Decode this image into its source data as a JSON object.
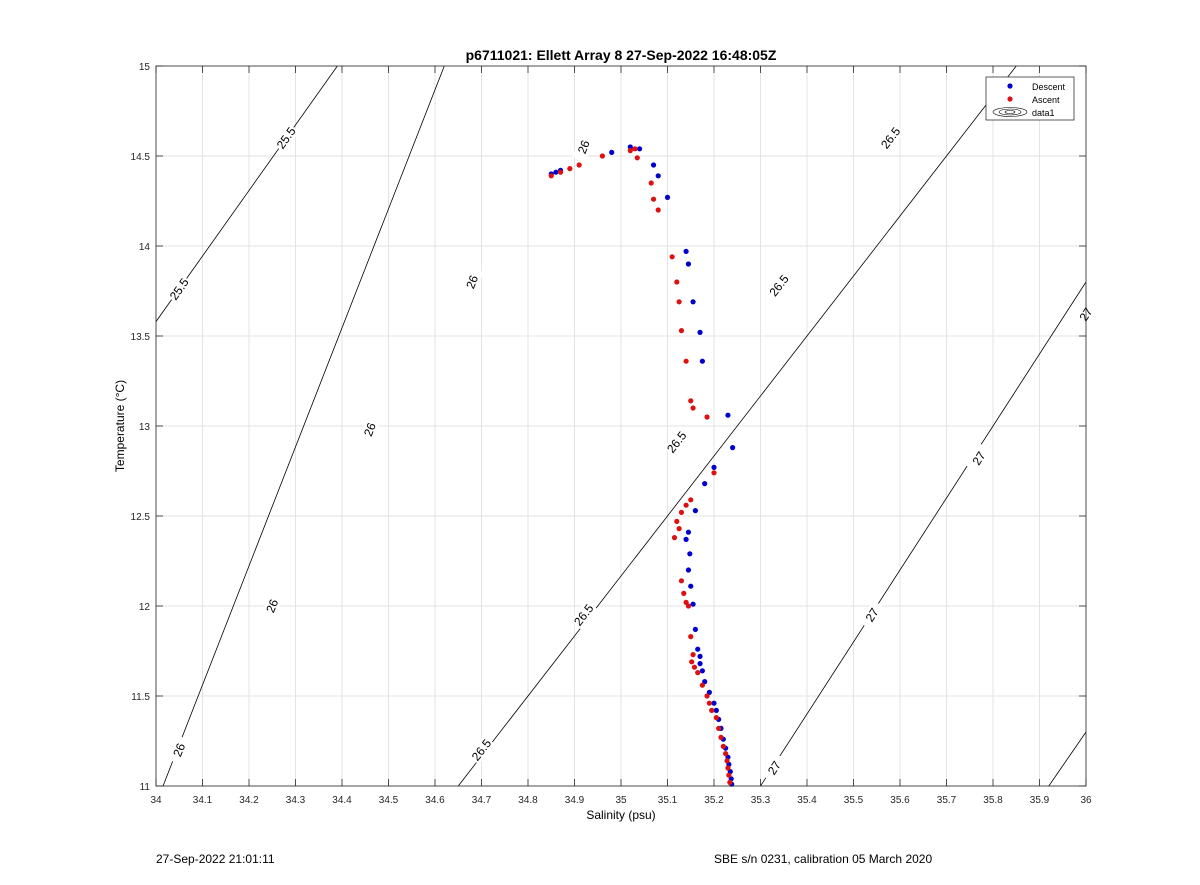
{
  "footer": {
    "timestamp": "27-Sep-2022 21:01:11",
    "calibration": "SBE s/n 0231, calibration 05 March 2020"
  },
  "chart_data": {
    "type": "scatter",
    "title": "p6711021: Ellett Array 8 27-Sep-2022 16:48:05Z",
    "xlabel": "Salinity (psu)",
    "ylabel": "Temperature (°C)",
    "xlim": [
      34,
      36
    ],
    "ylim": [
      11,
      15
    ],
    "xticks": [
      "34",
      "34.1",
      "34.2",
      "34.3",
      "34.4",
      "34.5",
      "34.6",
      "34.7",
      "34.8",
      "34.9",
      "35",
      "35.1",
      "35.2",
      "35.3",
      "35.4",
      "35.5",
      "35.6",
      "35.7",
      "35.8",
      "35.9",
      "36"
    ],
    "yticks": [
      "11",
      "11.5",
      "12",
      "12.5",
      "13",
      "13.5",
      "14",
      "14.5",
      "15"
    ],
    "grid": true,
    "legend_position": "top-right",
    "legend": [
      "Descent",
      "Ascent",
      "data1"
    ],
    "colors": {
      "descent": "#0000cc",
      "ascent": "#dd1111",
      "contour": "#000000",
      "grid": "#e3e3e3"
    },
    "density_contours": [
      {
        "level": "25.5",
        "points": [
          [
            34.0,
            13.58
          ],
          [
            34.39,
            15.0
          ]
        ],
        "labels": [
          [
            34.05,
            13.76
          ],
          [
            34.28,
            14.6
          ]
        ]
      },
      {
        "level": "26",
        "points": [
          [
            34.0,
            10.9
          ],
          [
            34.62,
            15.0
          ]
        ],
        "labels": [
          [
            34.05,
            11.2
          ],
          [
            34.25,
            12.0
          ],
          [
            34.46,
            12.98
          ],
          [
            34.68,
            13.8
          ],
          [
            34.92,
            14.55
          ]
        ]
      },
      {
        "level": "26.5",
        "points": [
          [
            34.65,
            11.0
          ],
          [
            35.85,
            15.0
          ]
        ],
        "labels": [
          [
            34.7,
            11.2
          ],
          [
            34.92,
            11.95
          ],
          [
            35.12,
            12.91
          ],
          [
            35.34,
            13.78
          ],
          [
            35.58,
            14.6
          ]
        ]
      },
      {
        "level": "27",
        "points": [
          [
            35.3,
            11.0
          ],
          [
            36.0,
            13.8
          ]
        ],
        "labels": [
          [
            35.33,
            11.1
          ],
          [
            35.54,
            11.95
          ],
          [
            35.77,
            12.82
          ],
          [
            36.0,
            13.62
          ]
        ]
      },
      {
        "level": "",
        "points": [
          [
            35.92,
            11.0
          ],
          [
            36.0,
            11.3
          ]
        ],
        "labels": []
      }
    ],
    "series": [
      {
        "name": "Descent",
        "x": [
          34.85,
          34.86,
          34.87,
          34.98,
          35.02,
          35.04,
          35.07,
          35.08,
          35.1,
          35.14,
          35.145,
          35.155,
          35.17,
          35.175,
          35.23,
          35.24,
          35.2,
          35.18,
          35.16,
          35.145,
          35.14,
          35.148,
          35.145,
          35.15,
          35.155,
          35.16,
          35.165,
          35.17,
          35.17,
          35.175,
          35.18,
          35.19,
          35.2,
          35.205,
          35.21,
          35.215,
          35.22,
          35.225,
          35.23,
          35.232,
          35.235,
          35.237,
          35.238
        ],
        "y": [
          14.4,
          14.41,
          14.42,
          14.52,
          14.55,
          14.54,
          14.45,
          14.39,
          14.27,
          13.97,
          13.9,
          13.69,
          13.52,
          13.36,
          13.06,
          12.88,
          12.77,
          12.68,
          12.53,
          12.41,
          12.37,
          12.29,
          12.2,
          12.11,
          12.01,
          11.87,
          11.76,
          11.72,
          11.68,
          11.64,
          11.58,
          11.52,
          11.46,
          11.42,
          11.37,
          11.32,
          11.26,
          11.21,
          11.16,
          11.12,
          11.08,
          11.04,
          11.01
        ]
      },
      {
        "name": "Ascent",
        "x": [
          34.85,
          34.87,
          34.89,
          34.91,
          34.96,
          35.02,
          35.03,
          35.035,
          35.065,
          35.07,
          35.08,
          35.11,
          35.12,
          35.125,
          35.13,
          35.14,
          35.15,
          35.155,
          35.185,
          35.2,
          35.15,
          35.14,
          35.13,
          35.12,
          35.125,
          35.115,
          35.13,
          35.135,
          35.14,
          35.145,
          35.15,
          35.155,
          35.152,
          35.158,
          35.165,
          35.175,
          35.185,
          35.19,
          35.195,
          35.205,
          35.21,
          35.215,
          35.22,
          35.225,
          35.228,
          35.23,
          35.232,
          35.234
        ],
        "y": [
          14.39,
          14.41,
          14.43,
          14.45,
          14.5,
          14.53,
          14.54,
          14.49,
          14.35,
          14.26,
          14.2,
          13.94,
          13.8,
          13.69,
          13.53,
          13.36,
          13.14,
          13.1,
          13.05,
          12.74,
          12.59,
          12.56,
          12.52,
          12.47,
          12.43,
          12.38,
          12.14,
          12.07,
          12.02,
          12.0,
          11.83,
          11.73,
          11.69,
          11.66,
          11.63,
          11.56,
          11.5,
          11.46,
          11.42,
          11.38,
          11.32,
          11.27,
          11.22,
          11.18,
          11.14,
          11.1,
          11.06,
          11.02
        ]
      }
    ]
  }
}
